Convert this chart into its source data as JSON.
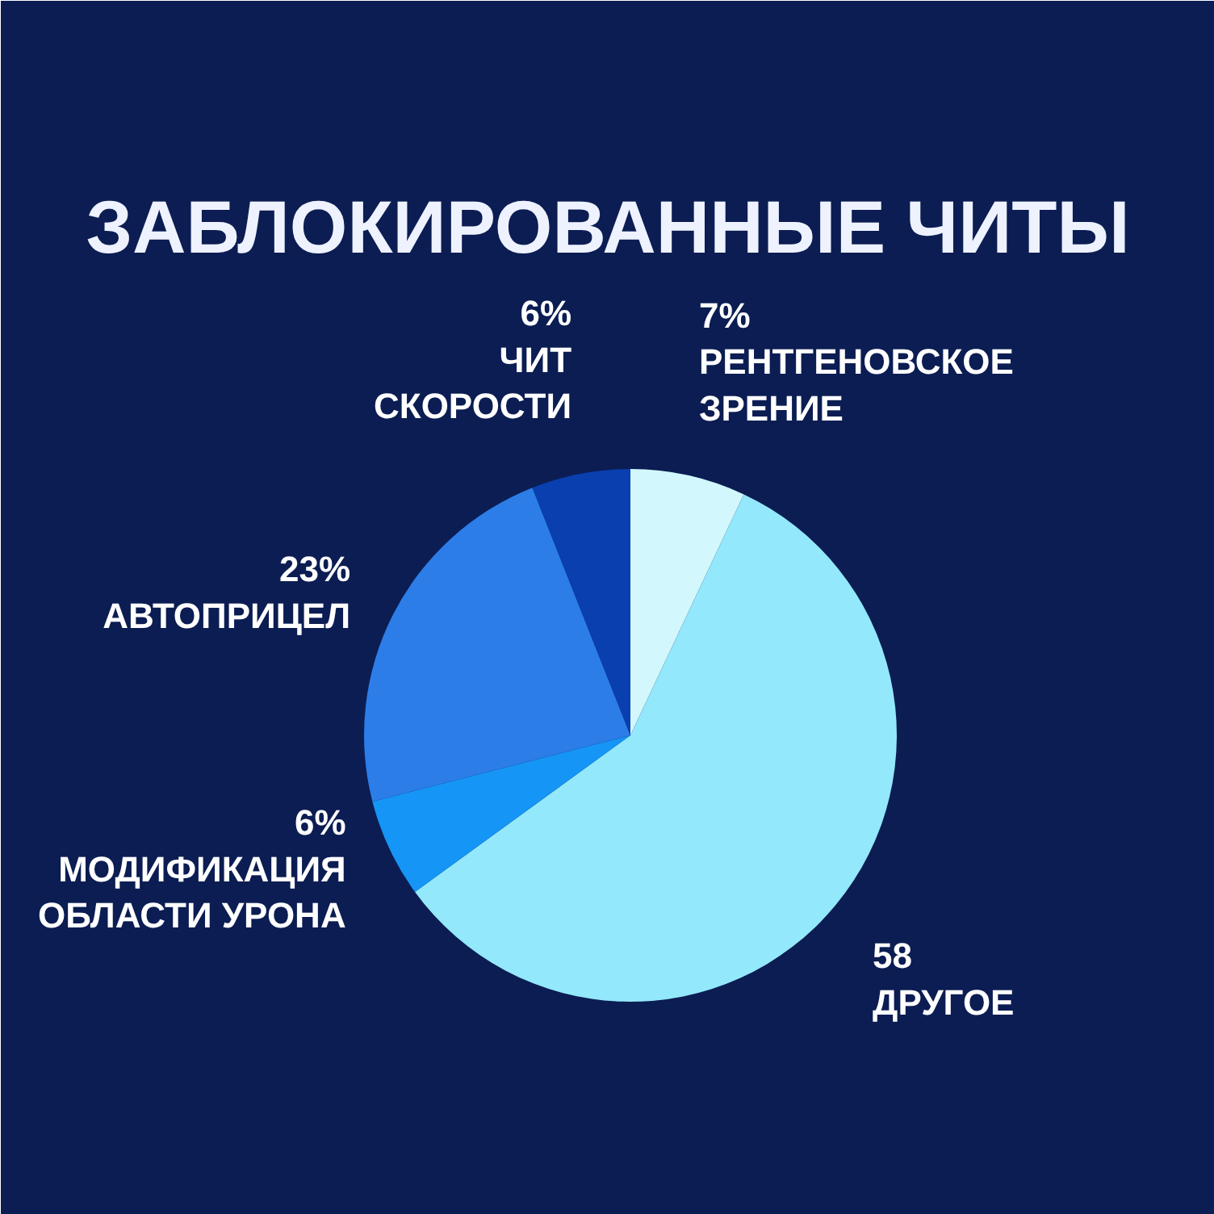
{
  "chart_data": {
    "type": "pie",
    "title": "ЗАБЛОКИРОВАННЫЕ ЧИТЫ",
    "categories": [
      "РЕНТГЕНОВСКОЕ\nЗРЕНИЕ",
      "ДРУГОЕ",
      "МОДИФИКАЦИЯ\nОБЛАСТИ УРОНА",
      "АВТОПРИЦЕЛ",
      "ЧИТ\nСКОРОСТИ"
    ],
    "values": [
      7,
      58,
      6,
      23,
      6
    ],
    "value_labels": [
      "7%",
      "58",
      "6%",
      "23%",
      "6%"
    ],
    "colors": [
      "#d2f7fd",
      "#93e8fb",
      "#1595f5",
      "#2c7de8",
      "#0a3fb0"
    ]
  }
}
